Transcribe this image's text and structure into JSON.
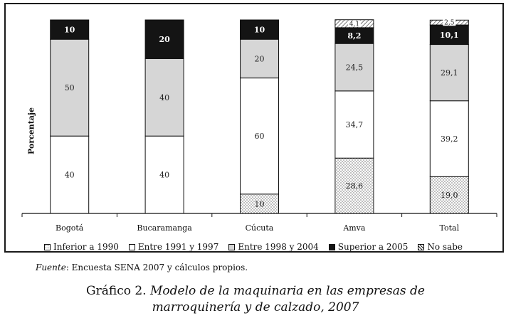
{
  "chart_data": {
    "type": "bar",
    "stacked": true,
    "ylabel": "Porcentaje",
    "categories": [
      "Bogotá",
      "Bucaramanga",
      "Cúcuta",
      "Amva",
      "Total"
    ],
    "series": [
      {
        "name": "Inferior a 1990",
        "pattern": "dots",
        "values": [
          0,
          0,
          10,
          28.6,
          19.0
        ],
        "labels": [
          "",
          "",
          "10",
          "28,6",
          "19,0"
        ]
      },
      {
        "name": "Entre 1991 y 1997",
        "color": "#ffffff",
        "values": [
          40,
          40,
          60,
          34.7,
          39.2
        ],
        "labels": [
          "40",
          "40",
          "60",
          "34,7",
          "39,2"
        ]
      },
      {
        "name": "Entre 1998 y 2004",
        "color": "#d6d6d6",
        "values": [
          50,
          40,
          20,
          24.5,
          29.1
        ],
        "labels": [
          "50",
          "40",
          "20",
          "24,5",
          "29,1"
        ]
      },
      {
        "name": "Superior a 2005",
        "color": "#141414",
        "values": [
          10,
          20,
          10,
          8.2,
          10.1
        ],
        "labels": [
          "10",
          "20",
          "10",
          "8,2",
          "10,1"
        ]
      },
      {
        "name": "No sabe",
        "pattern": "hatch",
        "values": [
          0,
          0,
          0,
          4.1,
          2.5
        ],
        "labels": [
          "",
          "",
          "",
          "4,1",
          "2,5"
        ]
      }
    ],
    "ylim": [
      0,
      100
    ],
    "grid": false,
    "legend_position": "bottom"
  },
  "source": {
    "label": "Fuente",
    "text": ": Encuesta SENA 2007 y cálculos propios."
  },
  "caption": {
    "lead": "Gráfico 2. ",
    "line1": "Modelo de la maquinaria en las empresas de",
    "line2": "marroquinería y de calzado, 2007"
  }
}
